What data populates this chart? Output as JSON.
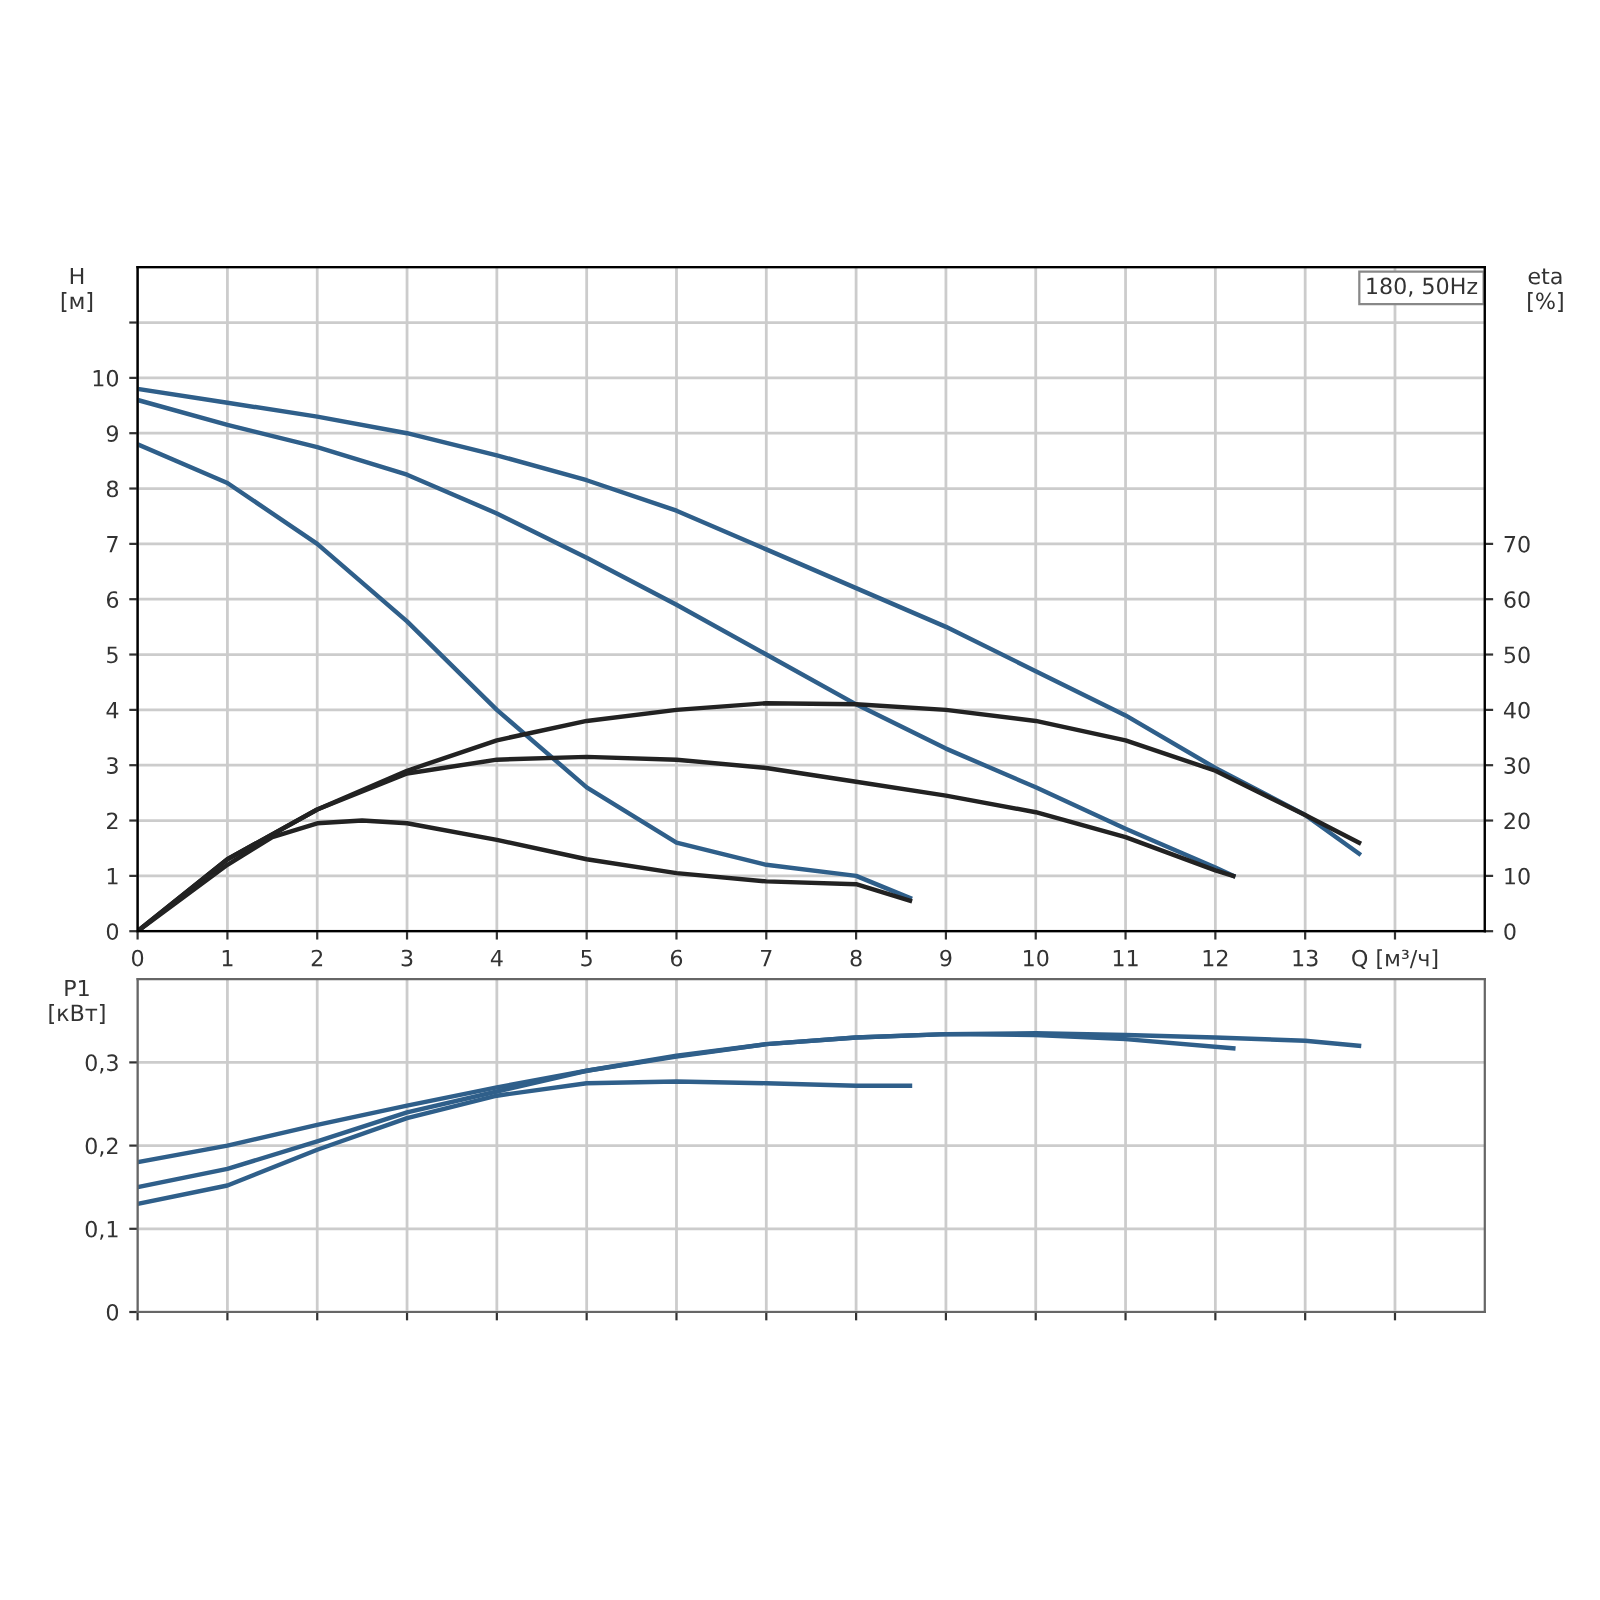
{
  "chart_data": [
    {
      "type": "line",
      "ylabel": "H\n[м]",
      "y2label": "eta\n[%]",
      "annotations": [
        "180, 50Hz"
      ],
      "xlim": [
        0,
        15
      ],
      "xticks": [
        0,
        1,
        2,
        3,
        4,
        5,
        6,
        7,
        8,
        9,
        10,
        11,
        12,
        13,
        {
          "value": 14,
          "label": "Q [м³/ч]"
        }
      ],
      "ylim": [
        0,
        12
      ],
      "yticks": [
        0,
        1,
        2,
        3,
        4,
        5,
        6,
        7,
        8,
        9,
        10,
        {
          "value": 11,
          "label": null
        }
      ],
      "y2lim": [
        0,
        120
      ],
      "y2ticks": [
        0,
        10,
        20,
        30,
        40,
        50,
        60,
        70
      ],
      "grid": true,
      "legend": false,
      "marker": "none",
      "line_style": "solid",
      "series": [
        {
          "color": "#2f5f8a",
          "x": [
            0,
            1,
            2,
            3,
            4,
            5,
            6,
            7,
            8,
            9,
            10,
            11,
            12,
            13,
            13.6
          ],
          "values": [
            9.8,
            9.55,
            9.3,
            9.0,
            8.6,
            8.15,
            7.6,
            6.9,
            6.2,
            5.5,
            4.7,
            3.9,
            2.95,
            2.1,
            1.4
          ]
        },
        {
          "color": "#2f5f8a",
          "x": [
            0,
            1,
            2,
            3,
            4,
            5,
            6,
            7,
            8,
            9,
            10,
            11,
            12,
            12.2
          ],
          "values": [
            9.6,
            9.15,
            8.75,
            8.25,
            7.55,
            6.75,
            5.9,
            5.0,
            4.1,
            3.3,
            2.6,
            1.85,
            1.15,
            1.0
          ]
        },
        {
          "color": "#2f5f8a",
          "x": [
            0,
            1,
            2,
            3,
            4,
            4.5,
            5,
            6,
            7,
            8,
            8.6
          ],
          "values": [
            8.8,
            8.1,
            7.0,
            5.6,
            4.0,
            3.3,
            2.6,
            1.6,
            1.2,
            1.0,
            0.6
          ]
        },
        {
          "color": "#222222",
          "axis": "y2",
          "x": [
            0,
            1,
            2,
            3,
            4,
            5,
            6,
            7,
            8,
            9,
            10,
            11,
            12,
            13,
            13.6
          ],
          "values": [
            0,
            13,
            22,
            29,
            34.5,
            38,
            40,
            41.2,
            41,
            40,
            38,
            34.5,
            29,
            21,
            16
          ]
        },
        {
          "color": "#222222",
          "axis": "y2",
          "x": [
            0,
            1,
            2,
            3,
            4,
            5,
            6,
            7,
            8,
            9,
            10,
            11,
            12,
            12.2
          ],
          "values": [
            0,
            13,
            22,
            28.5,
            31,
            31.5,
            31,
            29.5,
            27,
            24.5,
            21.5,
            17,
            11,
            10
          ]
        },
        {
          "color": "#222222",
          "axis": "y2",
          "x": [
            0,
            1,
            1.5,
            2,
            2.5,
            3,
            4,
            5,
            6,
            7,
            8,
            8.6
          ],
          "values": [
            0,
            12,
            17,
            19.5,
            20,
            19.5,
            16.5,
            13,
            10.5,
            9,
            8.5,
            5.5
          ]
        }
      ]
    },
    {
      "type": "line",
      "ylabel": "P1\n[кВт]",
      "xlim": [
        0,
        15
      ],
      "xticks": [
        0,
        1,
        2,
        3,
        4,
        5,
        6,
        7,
        8,
        9,
        10,
        11,
        12,
        13,
        14
      ],
      "ylim": [
        0,
        0.4
      ],
      "yticks": [
        0,
        {
          "value": 0.1,
          "label": "0,1"
        },
        {
          "value": 0.2,
          "label": "0,2"
        },
        {
          "value": 0.3,
          "label": "0,3"
        }
      ],
      "tick_labels": "y",
      "grid": true,
      "legend": false,
      "marker": "none",
      "line_style": "solid",
      "series": [
        {
          "color": "#2f5f8a",
          "x": [
            0,
            1,
            2,
            3,
            4,
            5,
            6,
            7,
            8,
            9,
            10,
            11,
            12,
            13,
            13.6
          ],
          "values": [
            0.18,
            0.2,
            0.225,
            0.248,
            0.27,
            0.29,
            0.308,
            0.322,
            0.33,
            0.334,
            0.335,
            0.333,
            0.33,
            0.326,
            0.32
          ]
        },
        {
          "color": "#2f5f8a",
          "x": [
            0,
            1,
            2,
            3,
            4,
            5,
            6,
            7,
            8,
            9,
            10,
            11,
            12.2
          ],
          "values": [
            0.15,
            0.172,
            0.205,
            0.24,
            0.265,
            0.29,
            0.307,
            0.322,
            0.33,
            0.334,
            0.333,
            0.328,
            0.317
          ]
        },
        {
          "color": "#2f5f8a",
          "x": [
            0,
            1,
            2,
            3,
            4,
            5,
            6,
            7,
            8,
            8.6
          ],
          "values": [
            0.13,
            0.152,
            0.195,
            0.233,
            0.26,
            0.275,
            0.277,
            0.275,
            0.272,
            0.272
          ]
        }
      ]
    }
  ]
}
